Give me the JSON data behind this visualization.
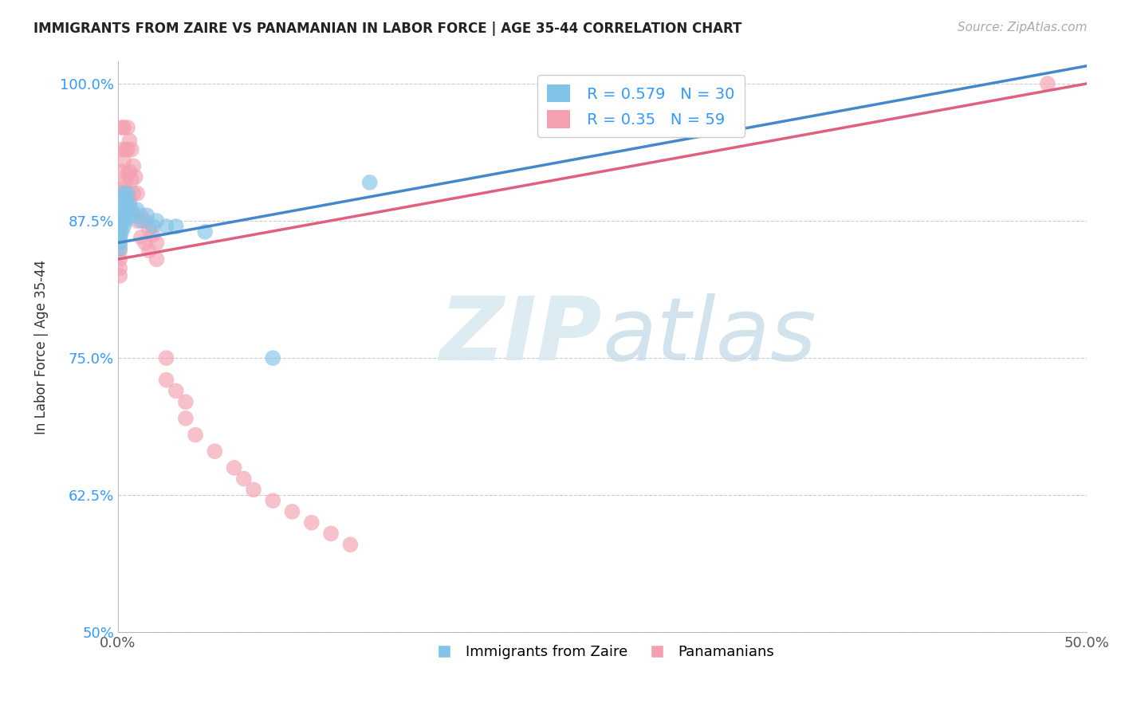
{
  "title": "IMMIGRANTS FROM ZAIRE VS PANAMANIAN IN LABOR FORCE | AGE 35-44 CORRELATION CHART",
  "source": "Source: ZipAtlas.com",
  "ylabel": "In Labor Force | Age 35-44",
  "xlim": [
    0.0,
    0.5
  ],
  "ylim": [
    0.5,
    1.02
  ],
  "xticks": [
    0.0,
    0.1,
    0.2,
    0.3,
    0.4,
    0.5
  ],
  "xticklabels": [
    "0.0%",
    "",
    "",
    "",
    "",
    "50.0%"
  ],
  "yticks": [
    0.5,
    0.625,
    0.75,
    0.875,
    1.0
  ],
  "yticklabels": [
    "50%",
    "62.5%",
    "75.0%",
    "87.5%",
    "100.0%"
  ],
  "blue_R": 0.579,
  "blue_N": 30,
  "pink_R": 0.35,
  "pink_N": 59,
  "blue_color": "#82c4e8",
  "pink_color": "#f4a0b0",
  "blue_line_color": "#4488cc",
  "pink_line_color": "#e06080",
  "watermark_zip": "ZIP",
  "watermark_atlas": "atlas",
  "blue_x": [
    0.001,
    0.001,
    0.001,
    0.001,
    0.001,
    0.001,
    0.002,
    0.002,
    0.002,
    0.002,
    0.003,
    0.003,
    0.003,
    0.004,
    0.004,
    0.005,
    0.005,
    0.006,
    0.007,
    0.008,
    0.01,
    0.012,
    0.015,
    0.018,
    0.02,
    0.025,
    0.03,
    0.045,
    0.08,
    0.13
  ],
  "blue_y": [
    0.875,
    0.87,
    0.865,
    0.86,
    0.855,
    0.85,
    0.895,
    0.885,
    0.875,
    0.865,
    0.9,
    0.885,
    0.87,
    0.895,
    0.875,
    0.9,
    0.88,
    0.89,
    0.885,
    0.88,
    0.885,
    0.875,
    0.88,
    0.87,
    0.875,
    0.87,
    0.87,
    0.865,
    0.75,
    0.91
  ],
  "pink_x": [
    0.001,
    0.001,
    0.001,
    0.001,
    0.001,
    0.001,
    0.001,
    0.001,
    0.002,
    0.002,
    0.002,
    0.002,
    0.002,
    0.003,
    0.003,
    0.003,
    0.003,
    0.004,
    0.004,
    0.004,
    0.005,
    0.005,
    0.005,
    0.005,
    0.006,
    0.006,
    0.006,
    0.007,
    0.007,
    0.008,
    0.008,
    0.009,
    0.01,
    0.01,
    0.012,
    0.012,
    0.014,
    0.014,
    0.016,
    0.016,
    0.018,
    0.02,
    0.02,
    0.025,
    0.025,
    0.03,
    0.035,
    0.035,
    0.04,
    0.05,
    0.06,
    0.065,
    0.07,
    0.08,
    0.09,
    0.1,
    0.11,
    0.12,
    0.48
  ],
  "pink_y": [
    0.875,
    0.868,
    0.86,
    0.855,
    0.848,
    0.84,
    0.832,
    0.825,
    0.96,
    0.94,
    0.92,
    0.9,
    0.875,
    0.96,
    0.93,
    0.905,
    0.88,
    0.94,
    0.91,
    0.885,
    0.96,
    0.94,
    0.918,
    0.895,
    0.948,
    0.92,
    0.895,
    0.94,
    0.912,
    0.925,
    0.9,
    0.915,
    0.9,
    0.875,
    0.88,
    0.86,
    0.875,
    0.855,
    0.868,
    0.848,
    0.862,
    0.855,
    0.84,
    0.75,
    0.73,
    0.72,
    0.71,
    0.695,
    0.68,
    0.665,
    0.65,
    0.64,
    0.63,
    0.62,
    0.61,
    0.6,
    0.59,
    0.58,
    1.0
  ]
}
